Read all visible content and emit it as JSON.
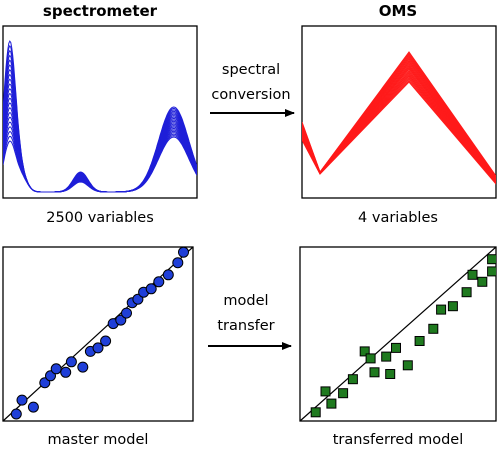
{
  "top_left": {
    "title": "spectrometer",
    "caption": "2500 variables",
    "line_color": "#1f1fd8",
    "series_count": 22
  },
  "top_right": {
    "title": "OMS",
    "caption": "4 variables",
    "line_color": "#ff1a1a",
    "series_count": 22
  },
  "arrow_top": {
    "line1": "spectral",
    "line2": "conversion"
  },
  "bottom_left": {
    "caption": "master model",
    "marker": "circle",
    "marker_color": "#1f3fd8",
    "points": [
      [
        0.07,
        0.04
      ],
      [
        0.1,
        0.12
      ],
      [
        0.16,
        0.08
      ],
      [
        0.22,
        0.22
      ],
      [
        0.25,
        0.26
      ],
      [
        0.28,
        0.3
      ],
      [
        0.33,
        0.28
      ],
      [
        0.36,
        0.34
      ],
      [
        0.42,
        0.31
      ],
      [
        0.46,
        0.4
      ],
      [
        0.5,
        0.42
      ],
      [
        0.54,
        0.46
      ],
      [
        0.58,
        0.56
      ],
      [
        0.62,
        0.58
      ],
      [
        0.65,
        0.62
      ],
      [
        0.68,
        0.68
      ],
      [
        0.71,
        0.7
      ],
      [
        0.74,
        0.74
      ],
      [
        0.78,
        0.76
      ],
      [
        0.82,
        0.8
      ],
      [
        0.87,
        0.84
      ],
      [
        0.92,
        0.91
      ],
      [
        0.95,
        0.97
      ]
    ]
  },
  "bottom_right": {
    "caption": "transferred model",
    "marker": "square",
    "marker_color": "#1f7a1f",
    "points": [
      [
        0.08,
        0.05
      ],
      [
        0.16,
        0.1
      ],
      [
        0.13,
        0.17
      ],
      [
        0.22,
        0.16
      ],
      [
        0.27,
        0.24
      ],
      [
        0.33,
        0.4
      ],
      [
        0.36,
        0.36
      ],
      [
        0.44,
        0.37
      ],
      [
        0.49,
        0.42
      ],
      [
        0.38,
        0.28
      ],
      [
        0.46,
        0.27
      ],
      [
        0.55,
        0.32
      ],
      [
        0.61,
        0.46
      ],
      [
        0.68,
        0.53
      ],
      [
        0.72,
        0.64
      ],
      [
        0.78,
        0.66
      ],
      [
        0.85,
        0.74
      ],
      [
        0.88,
        0.84
      ],
      [
        0.93,
        0.8
      ],
      [
        0.98,
        0.86
      ],
      [
        0.98,
        0.93
      ]
    ]
  },
  "arrow_bottom": {
    "line1": "model",
    "line2": "transfer"
  }
}
